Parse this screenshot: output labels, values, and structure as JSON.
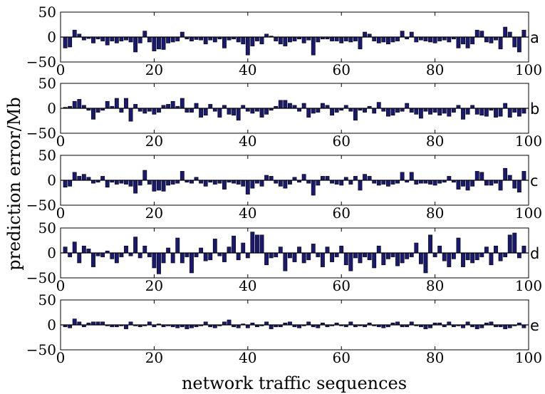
{
  "chart_data": {
    "type": "bar",
    "xlabel": "network traffic sequences",
    "ylabel": "prediction error/Mb",
    "xlim": [
      0,
      100
    ],
    "ylim": [
      -50,
      50
    ],
    "xticks": [
      "0",
      "20",
      "40",
      "60",
      "80",
      "100"
    ],
    "yticks": [
      "50",
      "0",
      "−50"
    ],
    "grid": false,
    "bar_color": "#191970",
    "panels": [
      {
        "label": "a",
        "x": [
          1,
          2,
          3,
          4,
          5,
          6,
          7,
          8,
          9,
          10,
          11,
          12,
          13,
          14,
          15,
          16,
          17,
          18,
          19,
          20,
          21,
          22,
          23,
          24,
          25,
          26,
          27,
          28,
          29,
          30,
          31,
          32,
          33,
          34,
          35,
          36,
          37,
          38,
          39,
          40,
          41,
          42,
          43,
          44,
          45,
          46,
          47,
          48,
          49,
          50,
          51,
          52,
          53,
          54,
          55,
          56,
          57,
          58,
          59,
          60,
          61,
          62,
          63,
          64,
          65,
          66,
          67,
          68,
          69,
          70,
          71,
          72,
          73,
          74,
          75,
          76,
          77,
          78,
          79,
          80,
          81,
          82,
          83,
          84,
          85,
          86,
          87,
          88,
          89,
          90,
          91,
          92,
          93,
          94,
          95,
          96,
          97,
          98,
          99
        ],
        "values": [
          -22,
          -20,
          14,
          6,
          -6,
          -3,
          -12,
          -4,
          -8,
          -16,
          -8,
          -12,
          -8,
          -6,
          -10,
          -30,
          -12,
          12,
          -10,
          -28,
          -24,
          -25,
          -12,
          -10,
          -8,
          10,
          -4,
          -8,
          -5,
          -6,
          -14,
          -6,
          -10,
          -4,
          -22,
          -6,
          -4,
          -10,
          -14,
          -36,
          -18,
          -8,
          -14,
          6,
          2,
          -8,
          -14,
          -18,
          -10,
          -8,
          -4,
          -12,
          -6,
          -36,
          -10,
          -4,
          -4,
          -8,
          -8,
          -12,
          -8,
          -10,
          -8,
          -24,
          10,
          6,
          -8,
          -12,
          -10,
          -14,
          -10,
          -8,
          12,
          -4,
          10,
          -10,
          -6,
          -8,
          -10,
          -12,
          -8,
          -6,
          -10,
          -4,
          -22,
          -14,
          -22,
          -14,
          14,
          12,
          -10,
          -12,
          -6,
          -24,
          20,
          10,
          -20,
          -30,
          14
        ]
      },
      {
        "label": "b",
        "x": [
          1,
          2,
          3,
          4,
          5,
          6,
          7,
          8,
          9,
          10,
          11,
          12,
          13,
          14,
          15,
          16,
          17,
          18,
          19,
          20,
          21,
          22,
          23,
          24,
          25,
          26,
          27,
          28,
          29,
          30,
          31,
          32,
          33,
          34,
          35,
          36,
          37,
          38,
          39,
          40,
          41,
          42,
          43,
          44,
          45,
          46,
          47,
          48,
          49,
          50,
          51,
          52,
          53,
          54,
          55,
          56,
          57,
          58,
          59,
          60,
          61,
          62,
          63,
          64,
          65,
          66,
          67,
          68,
          69,
          70,
          71,
          72,
          73,
          74,
          75,
          76,
          77,
          78,
          79,
          80,
          81,
          82,
          83,
          84,
          85,
          86,
          87,
          88,
          89,
          90,
          91,
          92,
          93,
          94,
          95,
          96,
          97,
          98,
          99
        ],
        "values": [
          2,
          4,
          14,
          18,
          6,
          -4,
          -22,
          -8,
          -4,
          14,
          4,
          20,
          -8,
          20,
          -26,
          8,
          -6,
          -10,
          -6,
          -12,
          -8,
          6,
          8,
          14,
          4,
          20,
          -8,
          -8,
          10,
          -18,
          -14,
          8,
          -6,
          -18,
          6,
          -12,
          -14,
          -24,
          6,
          -6,
          -10,
          -6,
          -18,
          -12,
          -4,
          4,
          16,
          16,
          10,
          6,
          -6,
          10,
          -18,
          -10,
          -8,
          10,
          6,
          -14,
          -8,
          -4,
          6,
          -6,
          -24,
          -4,
          -8,
          4,
          -10,
          12,
          -6,
          -16,
          -14,
          -8,
          -6,
          10,
          -8,
          -12,
          -20,
          -6,
          -12,
          -8,
          -14,
          -10,
          -16,
          -8,
          6,
          -22,
          -12,
          6,
          -12,
          -14,
          -16,
          -4,
          -18,
          -16,
          10,
          -18,
          -8,
          -16,
          -10
        ]
      },
      {
        "label": "c",
        "x": [
          1,
          2,
          3,
          4,
          5,
          6,
          7,
          8,
          9,
          10,
          11,
          12,
          13,
          14,
          15,
          16,
          17,
          18,
          19,
          20,
          21,
          22,
          23,
          24,
          25,
          26,
          27,
          28,
          29,
          30,
          31,
          32,
          33,
          34,
          35,
          36,
          37,
          38,
          39,
          40,
          41,
          42,
          43,
          44,
          45,
          46,
          47,
          48,
          49,
          50,
          51,
          52,
          53,
          54,
          55,
          56,
          57,
          58,
          59,
          60,
          61,
          62,
          63,
          64,
          65,
          66,
          67,
          68,
          69,
          70,
          71,
          72,
          73,
          74,
          75,
          76,
          77,
          78,
          79,
          80,
          81,
          82,
          83,
          84,
          85,
          86,
          87,
          88,
          89,
          90,
          91,
          92,
          93,
          94,
          95,
          96,
          97,
          98,
          99
        ],
        "values": [
          -14,
          -12,
          16,
          8,
          12,
          6,
          -6,
          -4,
          8,
          -14,
          -4,
          -8,
          -6,
          -8,
          -12,
          -26,
          -10,
          20,
          -8,
          -22,
          -20,
          -22,
          -10,
          -8,
          -6,
          18,
          -4,
          -6,
          6,
          -6,
          -12,
          -4,
          -8,
          -6,
          -18,
          -4,
          -6,
          -8,
          -12,
          -28,
          -16,
          -6,
          -12,
          10,
          8,
          -6,
          -12,
          -16,
          -8,
          6,
          -4,
          12,
          -6,
          -30,
          -10,
          8,
          8,
          -6,
          -8,
          -10,
          6,
          -8,
          8,
          -20,
          12,
          8,
          -6,
          -10,
          -8,
          -12,
          -8,
          -6,
          16,
          -4,
          16,
          -8,
          -6,
          -6,
          -8,
          -10,
          -6,
          -4,
          8,
          -4,
          -18,
          -12,
          -20,
          -12,
          18,
          16,
          -10,
          -10,
          -6,
          -20,
          24,
          10,
          -16,
          -24,
          18
        ]
      },
      {
        "label": "d",
        "x": [
          1,
          2,
          3,
          4,
          5,
          6,
          7,
          8,
          9,
          10,
          11,
          12,
          13,
          14,
          15,
          16,
          17,
          18,
          19,
          20,
          21,
          22,
          23,
          24,
          25,
          26,
          27,
          28,
          29,
          30,
          31,
          32,
          33,
          34,
          35,
          36,
          37,
          38,
          39,
          40,
          41,
          42,
          43,
          44,
          45,
          46,
          47,
          48,
          49,
          50,
          51,
          52,
          53,
          54,
          55,
          56,
          57,
          58,
          59,
          60,
          61,
          62,
          63,
          64,
          65,
          66,
          67,
          68,
          69,
          70,
          71,
          72,
          73,
          74,
          75,
          76,
          77,
          78,
          79,
          80,
          81,
          82,
          83,
          84,
          85,
          86,
          87,
          88,
          89,
          90,
          91,
          92,
          93,
          94,
          95,
          96,
          97,
          98,
          99
        ],
        "values": [
          12,
          -8,
          22,
          -20,
          14,
          8,
          -28,
          -6,
          -8,
          4,
          -12,
          -20,
          -8,
          14,
          -6,
          32,
          -10,
          14,
          -8,
          -30,
          -42,
          -20,
          10,
          -20,
          30,
          -20,
          -8,
          -40,
          -8,
          10,
          -16,
          -14,
          28,
          -6,
          -18,
          12,
          34,
          -14,
          20,
          -10,
          42,
          36,
          36,
          -24,
          -10,
          -8,
          12,
          -36,
          -10,
          -18,
          12,
          -20,
          -14,
          18,
          -8,
          -28,
          12,
          -18,
          -8,
          14,
          -24,
          -36,
          -10,
          -20,
          -8,
          -14,
          -30,
          14,
          -24,
          -12,
          -8,
          -26,
          -20,
          -12,
          -8,
          20,
          -22,
          -40,
          36,
          -8,
          14,
          -16,
          -28,
          -12,
          30,
          -28,
          -14,
          -20,
          -14,
          -8,
          12,
          -24,
          14,
          -16,
          -8,
          36,
          40,
          -10,
          14
        ]
      },
      {
        "label": "e",
        "x": [
          1,
          2,
          3,
          4,
          5,
          6,
          7,
          8,
          9,
          10,
          11,
          12,
          13,
          14,
          15,
          16,
          17,
          18,
          19,
          20,
          21,
          22,
          23,
          24,
          25,
          26,
          27,
          28,
          29,
          30,
          31,
          32,
          33,
          34,
          35,
          36,
          37,
          38,
          39,
          40,
          41,
          42,
          43,
          44,
          45,
          46,
          47,
          48,
          49,
          50,
          51,
          52,
          53,
          54,
          55,
          56,
          57,
          58,
          59,
          60,
          61,
          62,
          63,
          64,
          65,
          66,
          67,
          68,
          69,
          70,
          71,
          72,
          73,
          74,
          75,
          76,
          77,
          78,
          79,
          80,
          81,
          82,
          83,
          84,
          85,
          86,
          87,
          88,
          89,
          90,
          91,
          92,
          93,
          94,
          95,
          96,
          97,
          98,
          99
        ],
        "values": [
          -4,
          -6,
          12,
          6,
          -4,
          4,
          6,
          6,
          6,
          -2,
          -4,
          -4,
          -2,
          -8,
          6,
          -2,
          -4,
          -2,
          6,
          -4,
          2,
          -4,
          -2,
          -4,
          -6,
          -4,
          -8,
          -6,
          -4,
          -2,
          6,
          -4,
          -6,
          -2,
          6,
          10,
          -4,
          -6,
          2,
          -6,
          4,
          -4,
          -2,
          6,
          -8,
          -4,
          -4,
          4,
          6,
          -4,
          -6,
          -2,
          6,
          -4,
          -6,
          4,
          -4,
          -2,
          4,
          -2,
          -4,
          6,
          -4,
          -2,
          -4,
          4,
          -2,
          -4,
          -6,
          -4,
          4,
          6,
          -4,
          -4,
          6,
          -2,
          -4,
          -8,
          -6,
          4,
          4,
          -4,
          6,
          -4,
          -2,
          -6,
          6,
          -4,
          -8,
          -6,
          4,
          6,
          -4,
          -4,
          -8,
          -6,
          -2,
          4,
          -6
        ]
      }
    ]
  }
}
